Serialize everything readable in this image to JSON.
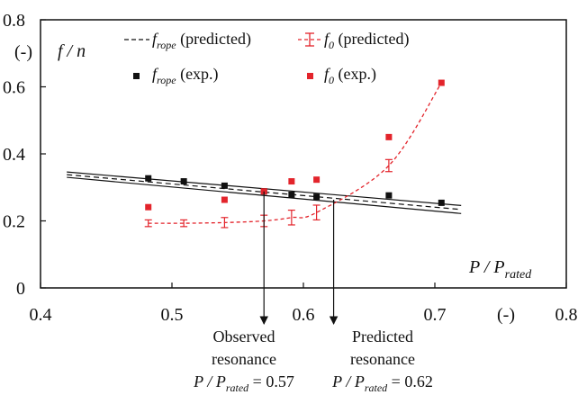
{
  "chart_data": {
    "type": "scatter",
    "xlim": [
      0.4,
      0.8
    ],
    "ylim": [
      0,
      0.8
    ],
    "x_ticks": [
      "0.4",
      "0.5",
      "0.6",
      "0.7",
      "0.8"
    ],
    "y_ticks": [
      "0",
      "0.2",
      "0.4",
      "0.6",
      "0.8"
    ],
    "ylabel_unit": "(-)",
    "ylabel": "f / n",
    "xlabel_main": "P / P",
    "xlabel_sub": "rated",
    "xlabel_unit": "(-)",
    "legend": {
      "frope_pred": {
        "main": "f",
        "sub": "rope",
        "rest": " (predicted)"
      },
      "f0_pred": {
        "main": "f",
        "sub": "0",
        "rest": " (predicted)"
      },
      "frope_exp": {
        "main": "f",
        "sub": "rope",
        "rest": " (exp.)"
      },
      "f0_exp": {
        "main": "f",
        "sub": "0",
        "rest": " (exp.)"
      }
    },
    "colors": {
      "black": "#111111",
      "red": "#e3242b"
    },
    "series": [
      {
        "key": "frope_exp",
        "style": "scatter",
        "color": "#111111",
        "x": [
          0.482,
          0.509,
          0.54,
          0.57,
          0.591,
          0.61,
          0.665,
          0.705
        ],
        "y": [
          0.327,
          0.318,
          0.305,
          0.288,
          0.278,
          0.272,
          0.276,
          0.254
        ]
      },
      {
        "key": "f0_exp",
        "style": "scatter",
        "color": "#e3242b",
        "x": [
          0.482,
          0.54,
          0.57,
          0.591,
          0.61,
          0.665,
          0.705
        ],
        "y": [
          0.241,
          0.263,
          0.288,
          0.318,
          0.323,
          0.45,
          0.612
        ]
      },
      {
        "key": "f0_pred",
        "style": "dashed-errorbar",
        "color": "#e3242b",
        "x": [
          0.482,
          0.509,
          0.54,
          0.57,
          0.591,
          0.61,
          0.665,
          0.705
        ],
        "y": [
          0.193,
          0.193,
          0.195,
          0.2,
          0.21,
          0.225,
          0.365,
          0.612
        ],
        "err": [
          0.01,
          0.01,
          0.015,
          0.017,
          0.022,
          0.022,
          0.018,
          0.0
        ]
      },
      {
        "key": "frope_pred",
        "style": "dashed-band",
        "color": "#111111",
        "x": [
          0.42,
          0.72
        ],
        "y_center": [
          0.338,
          0.234
        ],
        "y_upper": [
          0.346,
          0.246
        ],
        "y_lower": [
          0.33,
          0.222
        ]
      }
    ],
    "annotations": [
      {
        "key": "observed",
        "x": 0.57,
        "lines": [
          "Observed",
          "resonance"
        ],
        "formula_main": "P / P",
        "formula_sub": "rated",
        "formula_value": " = 0.57"
      },
      {
        "key": "predicted",
        "x": 0.623,
        "lines": [
          "Predicted",
          "resonance"
        ],
        "formula_main": "P / P",
        "formula_sub": "rated",
        "formula_value": " = 0.62"
      }
    ]
  }
}
